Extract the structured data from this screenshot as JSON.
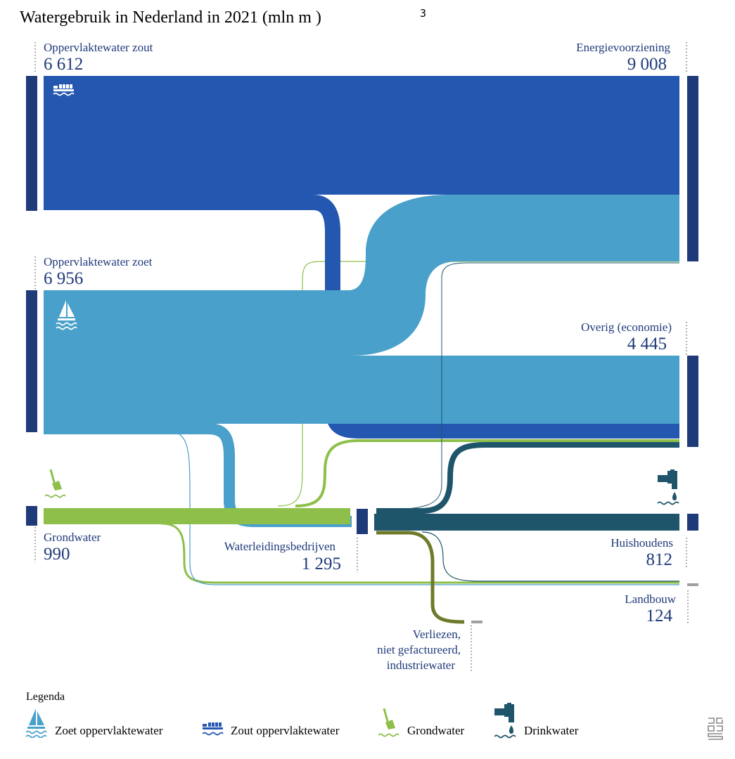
{
  "title": "Watergebruik in Nederland in 2021 (mln m  )",
  "title_superscript": "3",
  "nodes": {
    "zout": {
      "label": "Oppervlaktewater zout",
      "value": "6 612"
    },
    "zoet": {
      "label": "Oppervlaktewater zoet",
      "value": "6 956"
    },
    "grond": {
      "label": "Grondwater",
      "value": "990"
    },
    "waterleiding": {
      "label": "Waterleidingsbedrijven",
      "value": "1 295"
    },
    "energie": {
      "label": "Energievoorziening",
      "value": "9 008"
    },
    "overig": {
      "label": "Overig (economie)",
      "value": "4 445"
    },
    "huishoudens": {
      "label": "Huishoudens",
      "value": "812"
    },
    "landbouw": {
      "label": "Landbouw",
      "value": "124"
    },
    "verliezen": {
      "label_line1": "Verliezen,",
      "label_line2": "niet gefactureerd,",
      "label_line3": "industriewater"
    }
  },
  "legend": {
    "title": "Legenda",
    "items": [
      {
        "label": "Zoet oppervlaktewater",
        "icon": "sailboat-icon",
        "color": "#49a0ca"
      },
      {
        "label": "Zout oppervlaktewater",
        "icon": "ship-icon",
        "color": "#2457b0"
      },
      {
        "label": "Grondwater",
        "icon": "shovel-icon",
        "color": "#8dbf4a"
      },
      {
        "label": "Drinkwater",
        "icon": "tap-icon",
        "color": "#1f556b"
      }
    ]
  },
  "colors": {
    "zout": "#2457b0",
    "zoet": "#49a0ca",
    "grondwater": "#8dbf4a",
    "drinkwater": "#1f556b",
    "verliezen": "#6f7a2a",
    "node_bar": "#1e3a78",
    "landbouw_bar": "#a0a0a0"
  }
}
